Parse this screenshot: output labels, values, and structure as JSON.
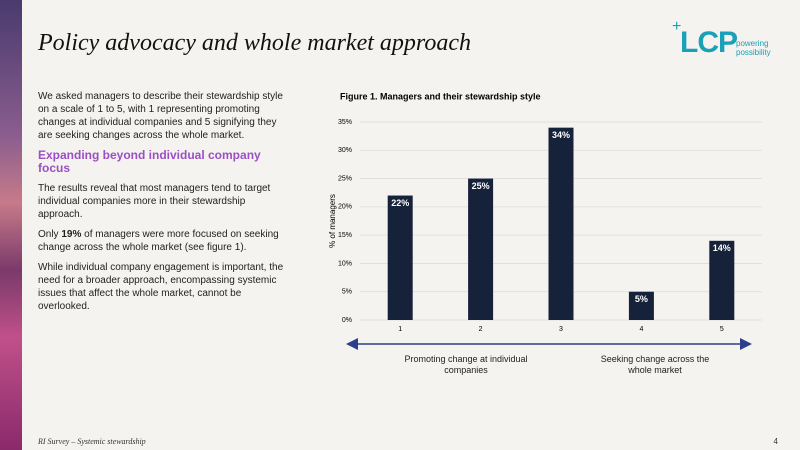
{
  "header": {
    "title": "Policy advocacy and whole market approach",
    "logo": "LCP",
    "tagline": [
      "powering",
      "possibility"
    ]
  },
  "body": {
    "intro": "We asked managers to describe their stewardship style on a scale of 1 to 5, with 1 representing promoting changes at individual companies and 5 signifying they are seeking changes across the whole market.",
    "heading": "Expanding beyond individual company focus",
    "paragraphs": [
      "The results reveal that most managers tend to target individual companies more in their stewardship approach.",
      "While individual company engagement is important, the need for a broader approach, encompassing systemic issues that affect the whole market, cannot be overlooked."
    ],
    "highlight": {
      "before": "Only",
      "bold": "19%",
      "after": "of managers were more focused on seeking change across the whole market (see figure 1)."
    }
  },
  "footer": {
    "left": "RI Survey – Systemic stewardship",
    "page": 4
  },
  "chart_data": {
    "type": "bar",
    "title": "Figure 1. Managers and their stewardship style",
    "y_label": "% of managers",
    "categories": [
      "1",
      "2",
      "3",
      "4",
      "5"
    ],
    "values": [
      22,
      25,
      34,
      5,
      14
    ],
    "value_labels": [
      "22%",
      "25%",
      "34%",
      "5%",
      "14%"
    ],
    "color": "#16213a",
    "ylim": [
      0,
      35
    ],
    "yticks": [
      {
        "value": 0,
        "label": "0%"
      },
      {
        "value": 5,
        "label": "5%"
      },
      {
        "value": 10,
        "label": "10%"
      },
      {
        "value": 15,
        "label": "15%"
      },
      {
        "value": 20,
        "label": "20%"
      },
      {
        "value": 25,
        "label": "25%"
      },
      {
        "value": 30,
        "label": "30%"
      },
      {
        "value": 35,
        "label": "35%"
      }
    ],
    "grid": true,
    "annotations": [
      "Promoting change at individual companies",
      "Seeking change across the whole market"
    ]
  }
}
